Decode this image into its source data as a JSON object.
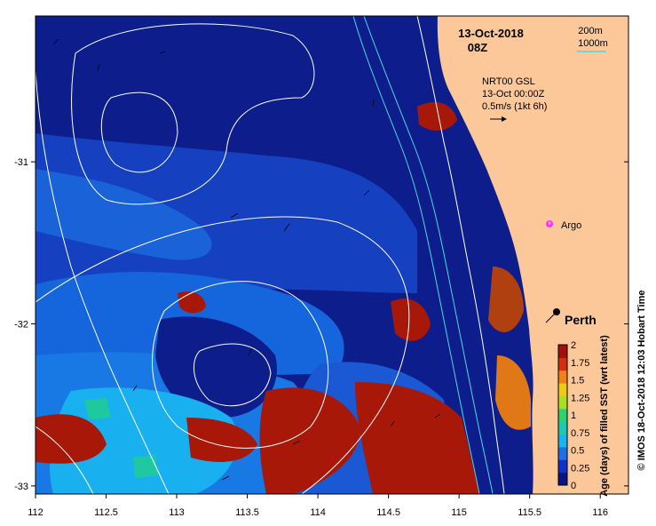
{
  "header": {
    "date": "13-Oct-2018",
    "time": "08Z"
  },
  "depth_legend": {
    "shallow": "200m",
    "deep": "1000m",
    "shallow_color": "#ffffff",
    "deep_color": "#4dd8e0"
  },
  "current_legend": {
    "line1": "NRT00 GSL",
    "line2": "13-Oct 00:00Z",
    "line3": "0.5m/s (1kt 6h)"
  },
  "markers": {
    "argo_label": "Argo",
    "city_label": "Perth"
  },
  "axes": {
    "x_ticks": [
      {
        "value": 112,
        "label": "112"
      },
      {
        "value": 112.5,
        "label": "112.5"
      },
      {
        "value": 113,
        "label": "113"
      },
      {
        "value": 113.5,
        "label": "113.5"
      },
      {
        "value": 114,
        "label": "114"
      },
      {
        "value": 114.5,
        "label": "114.5"
      },
      {
        "value": 115,
        "label": "115"
      },
      {
        "value": 115.5,
        "label": "115.5"
      },
      {
        "value": 116,
        "label": "116"
      }
    ],
    "y_ticks": [
      {
        "value": -31,
        "label": "-31"
      },
      {
        "value": -32,
        "label": "-32"
      },
      {
        "value": -33,
        "label": "-33"
      }
    ],
    "lon_range": [
      112,
      116.2
    ],
    "lat_range": [
      -30.1,
      -33.05
    ]
  },
  "colorbar": {
    "title": "Age (days) of filled SST (wrt latest)",
    "ticks": [
      "0",
      "0.25",
      "0.5",
      "0.75",
      "1",
      "1.25",
      "1.5",
      "1.75",
      "2"
    ],
    "colors": [
      "#0a1480",
      "#1030c8",
      "#1e6ee6",
      "#18b4f0",
      "#20c8b4",
      "#30d070",
      "#a8e020",
      "#f0c818",
      "#f08018",
      "#d03010",
      "#a01008"
    ]
  },
  "credit": "© IMOS 18-Oct-2018 12:03 Hobart Time",
  "colors": {
    "land": "#fcc89a",
    "ocean_deep": "#0d1e8c"
  }
}
